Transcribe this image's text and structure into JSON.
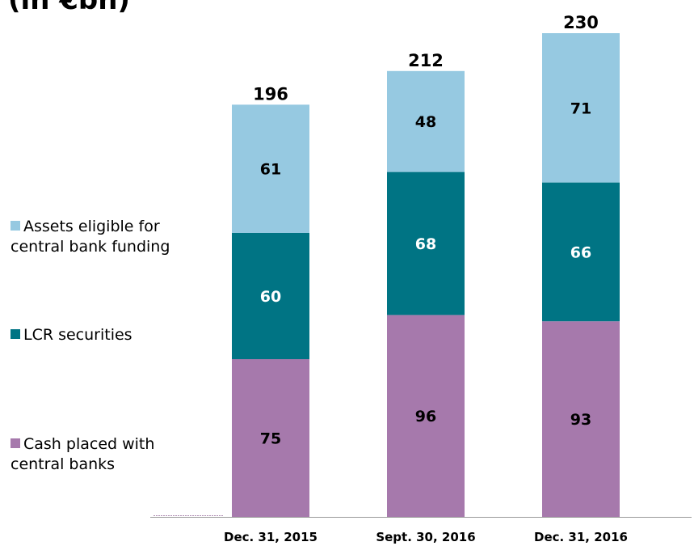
{
  "title": "(in €bn)",
  "legend": [
    {
      "line1": "Cash placed with",
      "line2": "central banks",
      "color": "#96c9e1"
    },
    {
      "line1": "LCR securities",
      "line2": "",
      "color": "#007484"
    },
    {
      "line1": "Assets eligible for",
      "line2": "central bank funding",
      "color": "#a679ac"
    }
  ],
  "chart_data": {
    "type": "bar",
    "stacked": true,
    "title": "(in €bn)",
    "categories": [
      "Dec. 31, 2015",
      "Sept. 30, 2016",
      "Dec. 31, 2016"
    ],
    "series": [
      {
        "name": "Assets eligible for central bank funding",
        "values": [
          75,
          96,
          93
        ],
        "color": "#a679ac",
        "label_color": "#000000"
      },
      {
        "name": "LCR securities",
        "values": [
          60,
          68,
          66
        ],
        "color": "#007484",
        "label_color": "#ffffff"
      },
      {
        "name": "Cash placed with central banks",
        "values": [
          61,
          48,
          71
        ],
        "color": "#96c9e1",
        "label_color": "#000000"
      }
    ],
    "totals": [
      196,
      212,
      230
    ],
    "legend_position": "left",
    "grid": false
  }
}
